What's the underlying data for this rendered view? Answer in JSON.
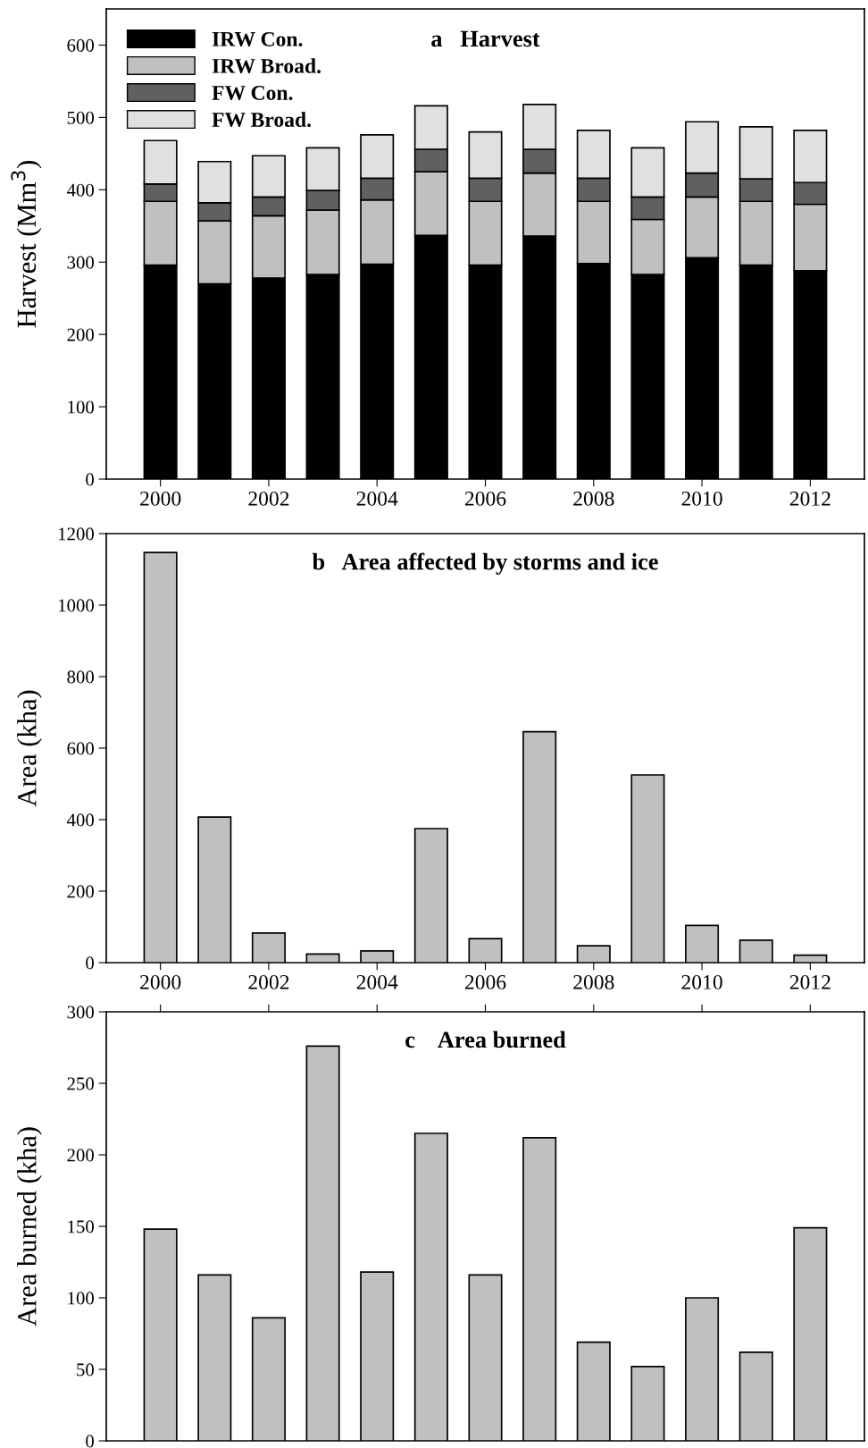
{
  "chart_data": [
    {
      "type": "bar",
      "title": "a   Harvest",
      "ylabel": "Harvest (Mm$^{3}$)",
      "stacked": true,
      "legend": "top left",
      "grid": false,
      "x": [
        2000,
        2001,
        2002,
        2003,
        2004,
        2005,
        2006,
        2007,
        2008,
        2009,
        2010,
        2011,
        2012
      ],
      "xlim": [
        1999,
        2013
      ],
      "xticks": [
        2000,
        2002,
        2004,
        2006,
        2008,
        2010,
        2012
      ],
      "ylim": [
        0,
        650
      ],
      "yticks": [
        0,
        100,
        200,
        300,
        400,
        500,
        600
      ],
      "series": [
        {
          "name": "IRW Con.",
          "color": "#000000",
          "values": [
            296,
            270,
            278,
            283,
            297,
            337,
            296,
            336,
            298,
            283,
            306,
            296,
            288
          ]
        },
        {
          "name": "IRW Broad.",
          "color": "#c0c0c0",
          "values": [
            88,
            87,
            86,
            89,
            89,
            88,
            88,
            87,
            86,
            76,
            84,
            88,
            92
          ]
        },
        {
          "name": "FW Con.",
          "color": "#606060",
          "values": [
            24,
            25,
            26,
            27,
            30,
            31,
            32,
            33,
            32,
            31,
            33,
            31,
            30
          ]
        },
        {
          "name": "FW Broad.",
          "color": "#e0e0e0",
          "values": [
            60,
            57,
            57,
            59,
            60,
            60,
            64,
            62,
            66,
            68,
            71,
            72,
            72
          ]
        }
      ]
    },
    {
      "type": "bar",
      "title": "b   Area affected by storms and ice",
      "ylabel": "Area (kha)",
      "grid": false,
      "x": [
        2000,
        2001,
        2002,
        2003,
        2004,
        2005,
        2006,
        2007,
        2008,
        2009,
        2010,
        2011,
        2012
      ],
      "xlim": [
        1999,
        2013
      ],
      "xticks": [
        2000,
        2002,
        2004,
        2006,
        2008,
        2010,
        2012
      ],
      "ylim": [
        0,
        1200
      ],
      "yticks": [
        0,
        200,
        400,
        600,
        800,
        1000,
        1200
      ],
      "series": [
        {
          "color": "#c0c0c0",
          "values": [
            1147,
            407,
            83,
            24,
            33,
            375,
            67,
            646,
            47,
            525,
            104,
            63,
            21
          ]
        }
      ]
    },
    {
      "type": "bar",
      "title": "c    Area burned",
      "ylabel": "Area burned (kha)",
      "grid": false,
      "tick_labels": "y",
      "x": [
        2000,
        2001,
        2002,
        2003,
        2004,
        2005,
        2006,
        2007,
        2008,
        2009,
        2010,
        2011,
        2012
      ],
      "xlim": [
        1999,
        2013
      ],
      "xticks": [
        2000,
        2002,
        2004,
        2006,
        2008,
        2010,
        2012
      ],
      "ylim": [
        0,
        300
      ],
      "yticks": [
        0,
        50,
        100,
        150,
        200,
        250,
        300
      ],
      "series": [
        {
          "color": "#c0c0c0",
          "values": [
            148,
            116,
            86,
            276,
            118,
            215,
            116,
            212,
            69,
            52,
            100,
            62,
            149
          ]
        }
      ]
    }
  ]
}
